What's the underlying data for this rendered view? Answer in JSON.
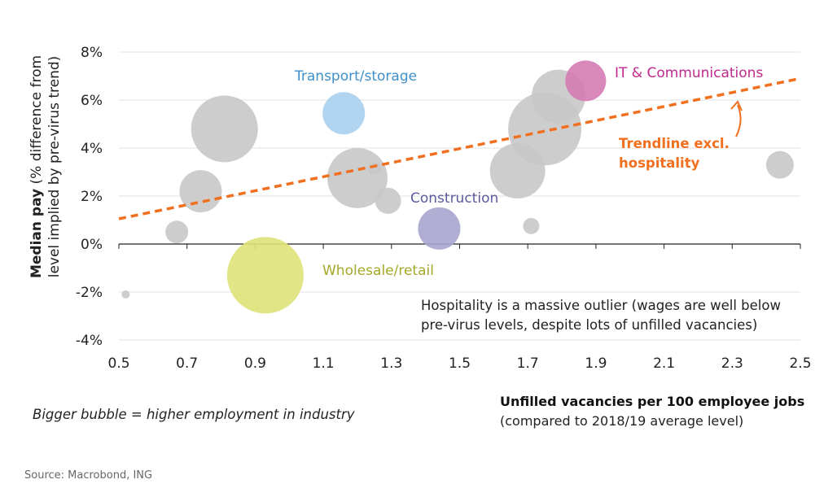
{
  "chart_data": {
    "type": "scatter",
    "title": "",
    "ylabel_bold": "Median pay",
    "ylabel_rest": " (% difference from",
    "ylabel_line2": "level implied by pre-virus trend)",
    "xlabel": "Unfilled vacancies per 100 employee jobs",
    "xlabel_sub": "(compared to 2018/19 average level)",
    "xlim": [
      0.5,
      2.5
    ],
    "ylim": [
      -4,
      8
    ],
    "x_ticks": [
      "0.5",
      "0.7",
      "0.9",
      "1.1",
      "1.3",
      "1.5",
      "1.7",
      "1.9",
      "2.1",
      "2.3",
      "2.5"
    ],
    "y_ticks": [
      "8%",
      "6%",
      "4%",
      "2%",
      "0%",
      "-2%",
      "-4%"
    ],
    "grid": "horizontal",
    "points": [
      {
        "x": 0.52,
        "y": -2.1,
        "size": 5,
        "color": "#c8c8c8"
      },
      {
        "x": 0.67,
        "y": 0.5,
        "size": 14,
        "color": "#c8c8c8"
      },
      {
        "x": 0.74,
        "y": 2.2,
        "size": 26,
        "color": "#c8c8c8"
      },
      {
        "x": 0.81,
        "y": 4.8,
        "size": 41,
        "color": "#c8c8c8"
      },
      {
        "x": 0.93,
        "y": -1.3,
        "size": 47,
        "color": "#dfe278",
        "label": "Wholesale/retail"
      },
      {
        "x": 1.16,
        "y": 5.45,
        "size": 26,
        "color": "#a8d0ee",
        "label": "Transport/storage"
      },
      {
        "x": 1.2,
        "y": 2.75,
        "size": 37,
        "color": "#c8c8c8"
      },
      {
        "x": 1.25,
        "y": 3.15,
        "size": 8,
        "color": "#c8c8c8"
      },
      {
        "x": 1.29,
        "y": 1.8,
        "size": 16,
        "color": "#c8c8c8"
      },
      {
        "x": 1.44,
        "y": 0.65,
        "size": 26,
        "color": "#a9a5cf",
        "label": "Construction"
      },
      {
        "x": 1.67,
        "y": 3.05,
        "size": 34,
        "color": "#c8c8c8"
      },
      {
        "x": 1.71,
        "y": 0.75,
        "size": 10,
        "color": "#c8c8c8"
      },
      {
        "x": 1.75,
        "y": 4.8,
        "size": 45,
        "color": "#c8c8c8"
      },
      {
        "x": 1.79,
        "y": 6.15,
        "size": 33,
        "color": "#c8c8c8"
      },
      {
        "x": 1.87,
        "y": 6.8,
        "size": 25,
        "color": "#d47bb4",
        "label": "IT & Communications"
      },
      {
        "x": 2.44,
        "y": 3.3,
        "size": 17,
        "color": "#c8c8c8"
      }
    ],
    "trendline": {
      "x": [
        0.5,
        2.5
      ],
      "y": [
        1.05,
        6.9
      ],
      "color": "#f07020",
      "style": "dashed",
      "label_line1": "Trendline excl.",
      "label_line2": "hospitality"
    },
    "annotation_line1": "Hospitality is a massive outlier (wages are well below",
    "annotation_line2": "pre-virus levels, despite lots of unfilled vacancies)",
    "bubble_note": "Bigger bubble = higher employment in industry",
    "source": "Source: Macrobond, ING",
    "label_colors": {
      "Transport/storage": "#3f8fc9",
      "Construction": "#5d5a9e",
      "Wholesale/retail": "#a4a82a",
      "IT & Communications": "#c0288e"
    }
  }
}
